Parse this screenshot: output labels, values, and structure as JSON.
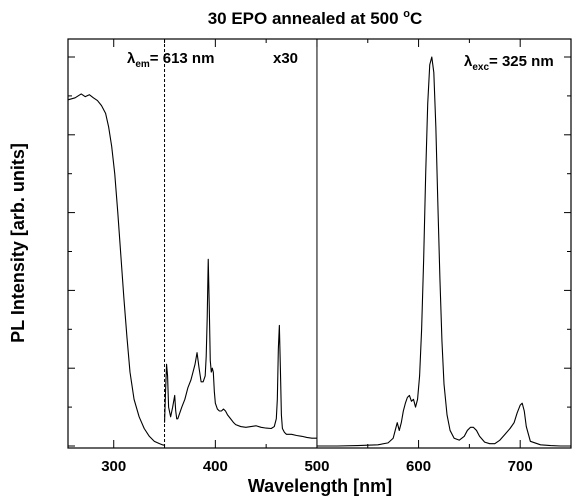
{
  "chart_data": {
    "type": "line",
    "title": "30  EPO annealed at 500 °C",
    "title_main": "30  EPO annealed at 500 ",
    "title_sup": "o",
    "title_end": "C",
    "xlabel": "Wavelength [nm]",
    "ylabel": "PL Intensity [arb. units]",
    "xlim": [
      255,
      750
    ],
    "ylim": [
      0,
      1
    ],
    "x_ticks": [
      300,
      400,
      500,
      600,
      700
    ],
    "x_tick_labels": [
      "300",
      "400",
      "500",
      "600",
      "700"
    ],
    "y_tick_labels_shown": false,
    "grid": false,
    "legend": "none",
    "vlines": [
      {
        "x": 350,
        "style": "dashed"
      },
      {
        "x": 500,
        "style": "solid"
      }
    ],
    "annotations": [
      {
        "id": "lambda_em",
        "lambda": "λ",
        "sub": "em",
        "text": "= 613 nm"
      },
      {
        "id": "scale",
        "text": "x30"
      },
      {
        "id": "lambda_exc",
        "lambda": "λ",
        "sub": "exc",
        "text": "= 325 nm"
      }
    ],
    "series": [
      {
        "role": "excitation",
        "x": [
          255,
          262,
          268,
          272,
          276,
          280,
          284,
          288,
          292,
          295,
          298,
          301,
          304,
          307,
          310,
          313,
          316,
          320,
          325,
          330,
          335,
          340,
          345,
          348,
          349.5
        ],
        "y": [
          0.89,
          0.895,
          0.905,
          0.898,
          0.903,
          0.895,
          0.888,
          0.875,
          0.855,
          0.82,
          0.77,
          0.7,
          0.6,
          0.49,
          0.38,
          0.28,
          0.19,
          0.12,
          0.075,
          0.045,
          0.025,
          0.012,
          0.006,
          0.003,
          0.002
        ]
      },
      {
        "role": "emission_x30",
        "x": [
          350,
          351,
          352,
          353,
          354,
          356,
          358,
          360,
          361,
          362,
          363,
          365,
          367,
          370,
          373,
          376,
          378,
          380,
          382,
          384,
          386,
          388,
          390,
          391,
          392,
          393,
          394,
          395,
          396,
          397,
          398,
          399,
          400,
          402,
          404,
          406,
          408,
          410,
          412,
          415,
          418,
          420,
          425,
          430,
          435,
          440,
          445,
          450,
          455,
          458,
          460,
          461,
          462,
          463,
          464,
          465,
          466,
          468,
          470,
          475,
          480,
          485,
          490,
          495,
          500
        ],
        "y": [
          0.06,
          0.14,
          0.21,
          0.18,
          0.1,
          0.075,
          0.1,
          0.13,
          0.09,
          0.07,
          0.07,
          0.085,
          0.1,
          0.12,
          0.15,
          0.17,
          0.19,
          0.21,
          0.24,
          0.2,
          0.165,
          0.165,
          0.18,
          0.23,
          0.33,
          0.48,
          0.36,
          0.22,
          0.19,
          0.2,
          0.19,
          0.14,
          0.11,
          0.095,
          0.09,
          0.09,
          0.095,
          0.09,
          0.08,
          0.07,
          0.06,
          0.055,
          0.05,
          0.048,
          0.05,
          0.052,
          0.048,
          0.046,
          0.045,
          0.05,
          0.07,
          0.12,
          0.25,
          0.31,
          0.2,
          0.08,
          0.045,
          0.035,
          0.03,
          0.03,
          0.027,
          0.025,
          0.022,
          0.02,
          0.02
        ]
      },
      {
        "role": "emission",
        "x": [
          500,
          520,
          540,
          560,
          570,
          575,
          577,
          579,
          581,
          583,
          585,
          587,
          589,
          591,
          593,
          595,
          597,
          599,
          601,
          603,
          605,
          607,
          609,
          611,
          613,
          615,
          617,
          619,
          621,
          623,
          625,
          628,
          631,
          635,
          640,
          645,
          648,
          651,
          654,
          657,
          660,
          665,
          670,
          675,
          680,
          685,
          690,
          694,
          697,
          700,
          702,
          704,
          706,
          710,
          720,
          730,
          740,
          750
        ],
        "y": [
          0.0,
          0.0,
          0.001,
          0.003,
          0.008,
          0.02,
          0.04,
          0.06,
          0.04,
          0.06,
          0.09,
          0.11,
          0.125,
          0.13,
          0.115,
          0.12,
          0.1,
          0.12,
          0.18,
          0.3,
          0.48,
          0.7,
          0.88,
          0.98,
          1.0,
          0.96,
          0.82,
          0.62,
          0.43,
          0.27,
          0.16,
          0.08,
          0.04,
          0.02,
          0.015,
          0.025,
          0.04,
          0.048,
          0.048,
          0.04,
          0.025,
          0.01,
          0.006,
          0.006,
          0.015,
          0.03,
          0.045,
          0.06,
          0.085,
          0.105,
          0.11,
          0.09,
          0.05,
          0.012,
          0.003,
          0.001,
          0.0,
          0.0
        ]
      }
    ]
  }
}
